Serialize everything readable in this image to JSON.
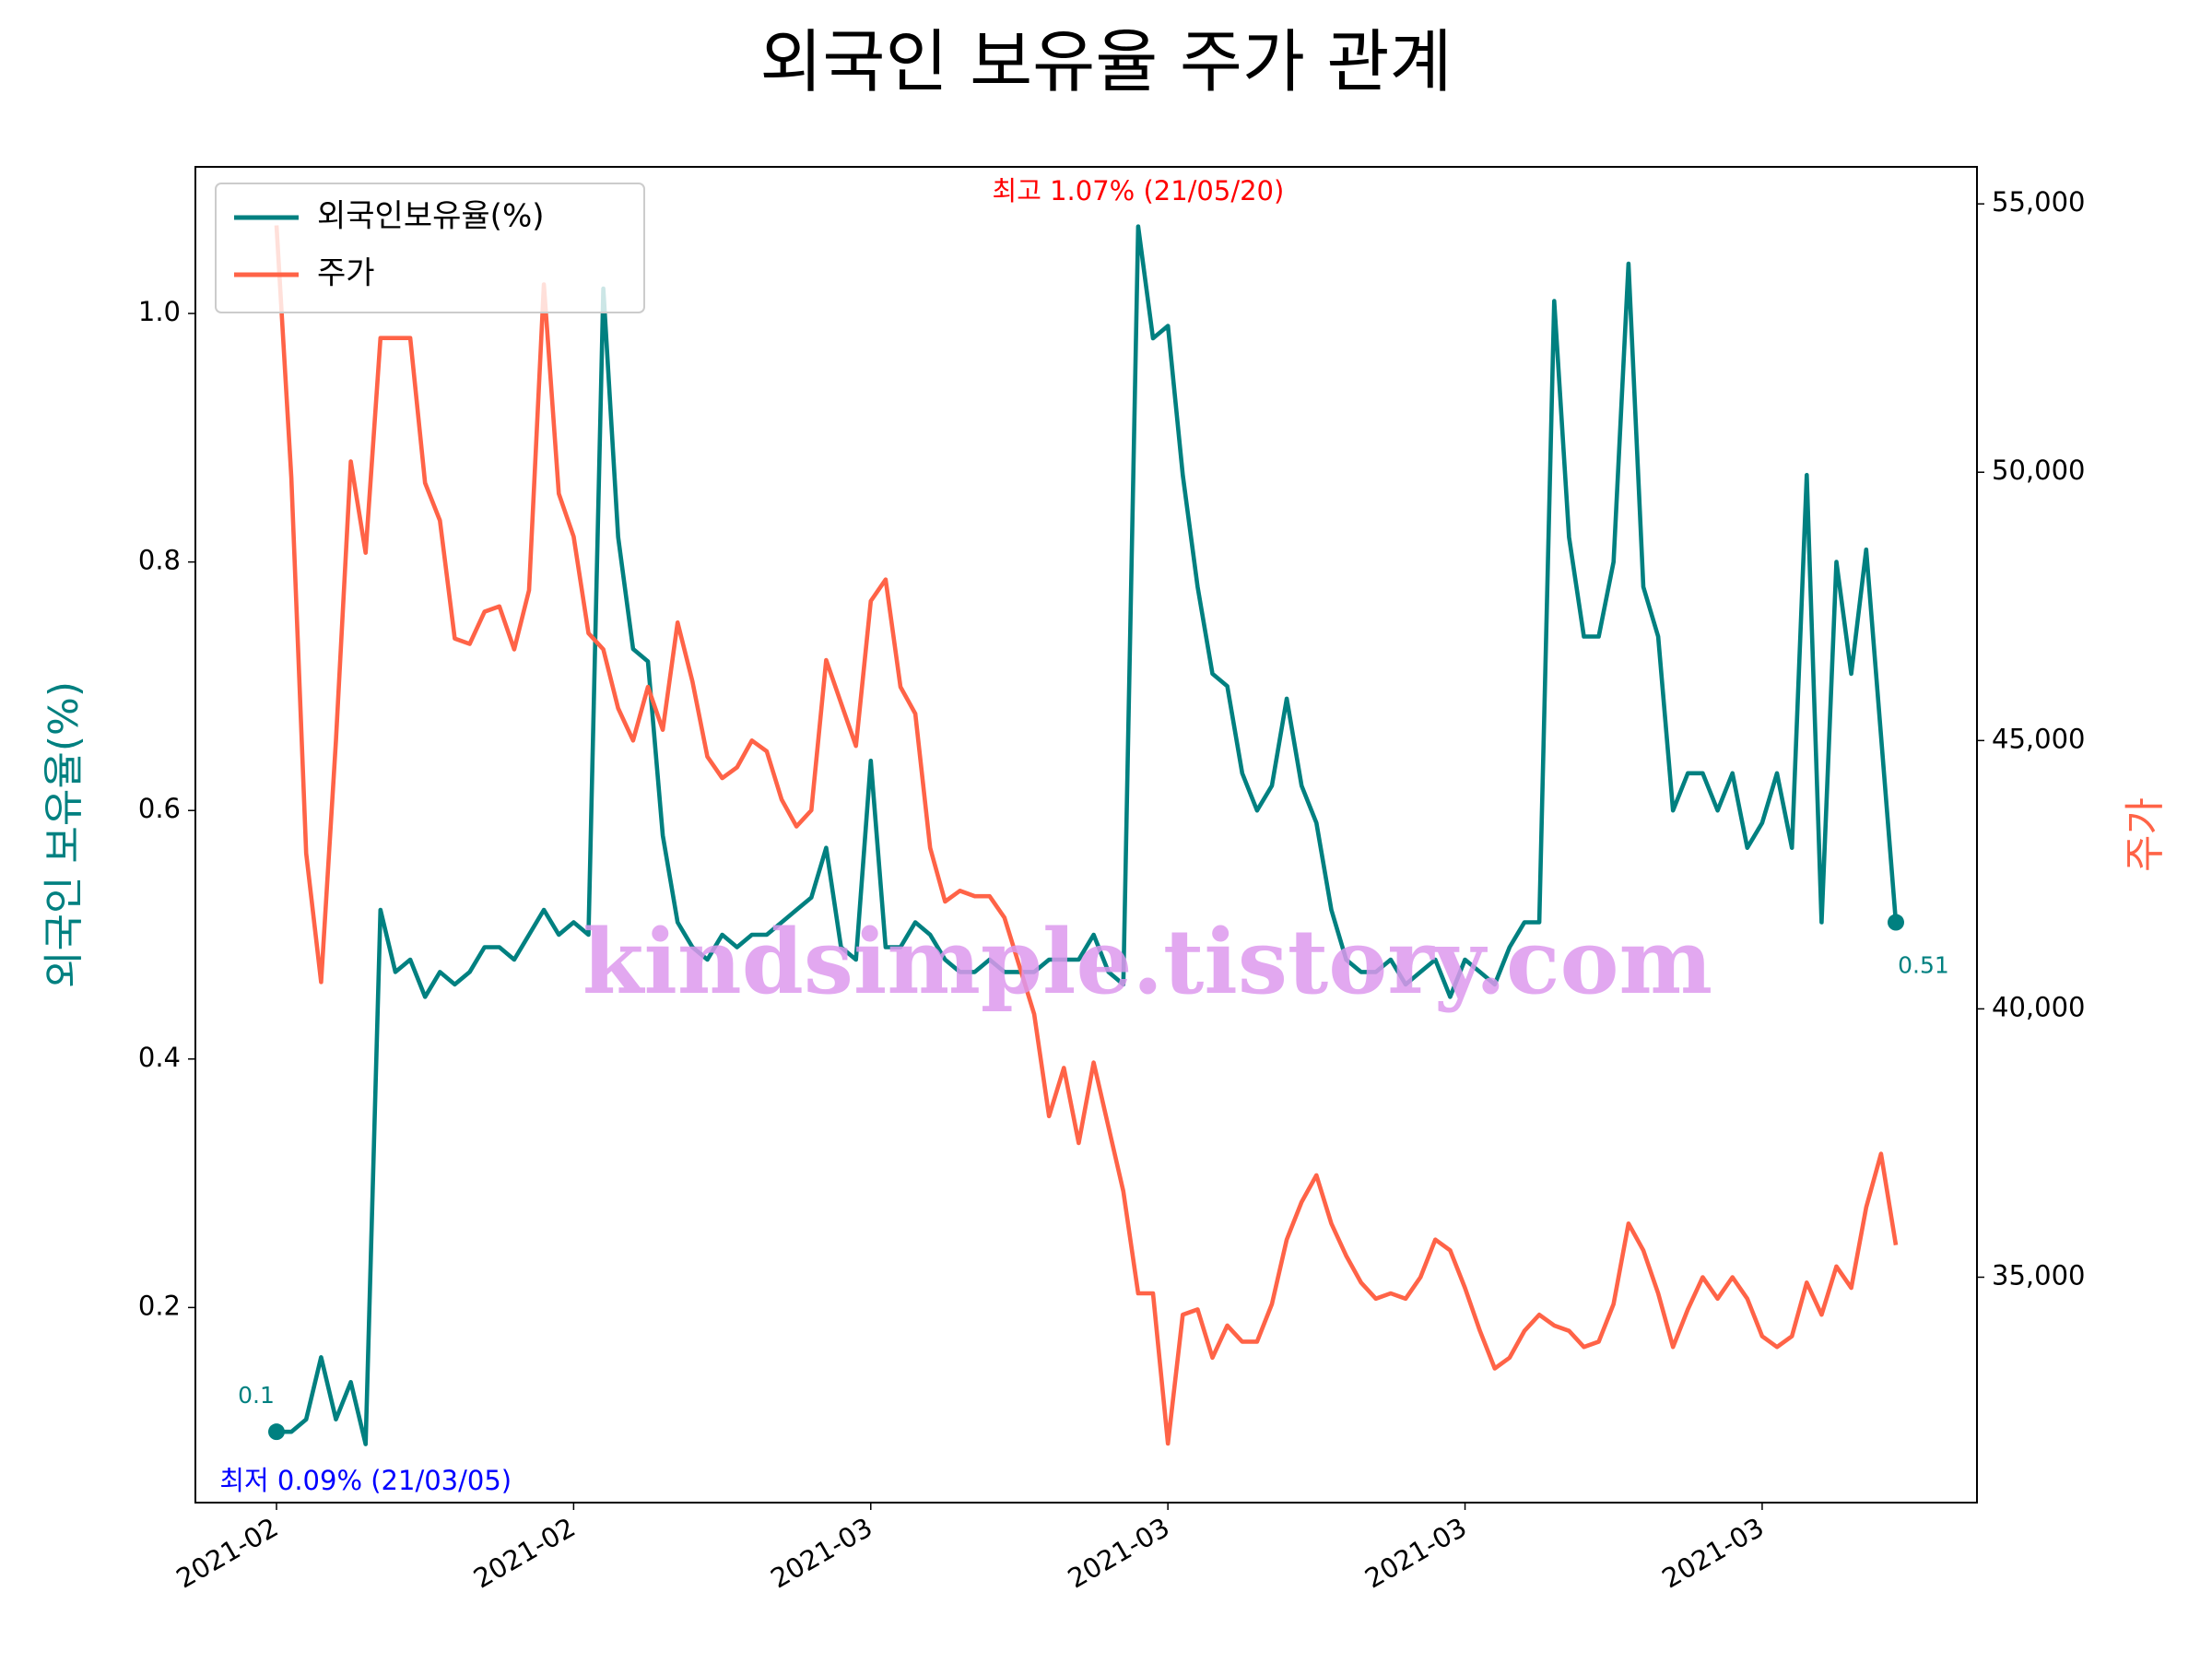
{
  "chart_data": {
    "type": "line",
    "title": "외국인 보유율 주가 관계",
    "y_label": "외국인 보유율(%)",
    "y2_label": "주가",
    "watermark": "kindsimple.tistory.com",
    "annotations": [
      {
        "text": "최고 1.07% (21/05/20)",
        "color": "#ff0000"
      },
      {
        "text": "최저 0.09% (21/03/05)",
        "color": "#0000ff"
      }
    ],
    "categories": [
      "2021-02",
      null,
      null,
      null,
      null,
      null,
      null,
      null,
      null,
      null,
      null,
      null,
      null,
      null,
      null,
      null,
      null,
      null,
      null,
      null,
      "2021-02",
      null,
      null,
      null,
      null,
      null,
      null,
      null,
      null,
      null,
      null,
      null,
      null,
      null,
      null,
      null,
      null,
      null,
      null,
      null,
      "2021-03",
      null,
      null,
      null,
      null,
      null,
      null,
      null,
      null,
      null,
      null,
      null,
      null,
      null,
      null,
      null,
      null,
      null,
      null,
      null,
      "2021-03",
      null,
      null,
      null,
      null,
      null,
      null,
      null,
      null,
      null,
      null,
      null,
      null,
      null,
      null,
      null,
      null,
      null,
      null,
      null,
      "2021-03",
      null,
      null,
      null,
      null,
      null,
      null,
      null,
      null,
      null,
      null,
      null,
      null,
      null,
      null,
      null,
      null,
      null,
      null,
      null,
      "2021-03",
      null,
      null,
      null,
      null,
      null,
      null,
      null,
      null,
      null
    ],
    "ylim": [
      0.043,
      1.118
    ],
    "yticks": [
      0.2,
      0.4,
      0.6,
      0.8,
      {
        "value": 1,
        "label": "1.0"
      }
    ],
    "y2lim": [
      30800,
      55690
    ],
    "y2ticks": [
      {
        "value": 35000,
        "label": "35,000"
      },
      {
        "value": 40000,
        "label": "40,000"
      },
      {
        "value": 45000,
        "label": "45,000"
      },
      {
        "value": 50000,
        "label": "50,000"
      },
      {
        "value": 55000,
        "label": "55,000"
      }
    ],
    "grid": false,
    "legend": "upper left",
    "series": [
      {
        "name": "외국인보유율(%)",
        "color": "#008080",
        "values": [
          0.1,
          0.1,
          0.11,
          0.16,
          0.11,
          0.14,
          0.09,
          0.52,
          0.47,
          0.48,
          0.45,
          0.47,
          0.46,
          0.47,
          0.49,
          0.49,
          0.48,
          0.5,
          0.52,
          0.5,
          0.51,
          0.5,
          1.02,
          0.82,
          0.73,
          0.72,
          0.58,
          0.51,
          0.49,
          0.48,
          0.5,
          0.49,
          0.5,
          0.5,
          0.51,
          0.52,
          0.53,
          0.57,
          0.49,
          0.48,
          0.64,
          0.49,
          0.49,
          0.51,
          0.5,
          0.48,
          0.47,
          0.47,
          0.48,
          0.47,
          0.47,
          0.47,
          0.48,
          0.48,
          0.48,
          0.5,
          0.47,
          0.46,
          1.07,
          0.98,
          0.99,
          0.87,
          0.78,
          0.71,
          0.7,
          0.63,
          0.6,
          0.62,
          0.69,
          0.62,
          0.59,
          0.52,
          0.48,
          0.47,
          0.47,
          0.48,
          0.46,
          0.47,
          0.48,
          0.45,
          0.48,
          0.47,
          0.46,
          0.49,
          0.51,
          0.51,
          1.01,
          0.82,
          0.74,
          0.74,
          0.8,
          1.04,
          0.78,
          0.74,
          0.6,
          0.63,
          0.63,
          0.6,
          0.63,
          0.57,
          0.59,
          0.63,
          0.57,
          0.87,
          0.51,
          0.8,
          0.71,
          0.81,
          0.66,
          0.51
        ],
        "value_labels": [
          "0.1",
          null,
          null,
          null,
          null,
          null,
          null,
          null,
          null,
          null,
          null,
          null,
          null,
          null,
          null,
          null,
          null,
          null,
          null,
          null,
          null,
          null,
          null,
          null,
          null,
          null,
          null,
          null,
          null,
          null,
          null,
          null,
          null,
          null,
          null,
          null,
          null,
          null,
          null,
          null,
          null,
          null,
          null,
          null,
          null,
          null,
          null,
          null,
          null,
          null,
          null,
          null,
          null,
          null,
          null,
          null,
          null,
          null,
          null,
          null,
          null,
          null,
          null,
          null,
          null,
          null,
          null,
          null,
          null,
          null,
          null,
          null,
          null,
          null,
          null,
          null,
          null,
          null,
          null,
          null,
          null,
          null,
          null,
          null,
          null,
          null,
          null,
          null,
          null,
          null,
          null,
          null,
          null,
          null,
          null,
          null,
          null,
          null,
          null,
          null,
          null,
          null,
          null,
          null,
          null,
          null,
          null,
          null,
          null,
          "0.51"
        ]
      },
      {
        "name": "주가",
        "color": "#ff6347",
        "axis": "y2",
        "values": [
          54600,
          49900,
          42900,
          40500,
          45000,
          50200,
          48500,
          52500,
          52500,
          52500,
          49800,
          49100,
          46900,
          46800,
          47400,
          47500,
          46700,
          47800,
          53500,
          49600,
          48800,
          47000,
          46700,
          45600,
          45000,
          46000,
          45200,
          47200,
          46100,
          44700,
          44300,
          44500,
          45000,
          44800,
          43900,
          43400,
          43700,
          46500,
          45700,
          44900,
          47600,
          48000,
          46000,
          45500,
          43000,
          42000,
          42200,
          42100,
          42100,
          41700,
          40800,
          39900,
          38000,
          38900,
          37500,
          39000,
          37800,
          36600,
          34700,
          34700,
          31900,
          34300,
          34400,
          33500,
          34100,
          33800,
          33800,
          34500,
          35700,
          36400,
          36900,
          36000,
          35400,
          34900,
          34600,
          34700,
          34600,
          35000,
          35700,
          35500,
          34800,
          34000,
          33300,
          33500,
          34000,
          34300,
          34100,
          34000,
          33700,
          33800,
          34500,
          36000,
          35500,
          34700,
          33700,
          34400,
          35000,
          34600,
          35000,
          34600,
          33900,
          33700,
          33900,
          34900,
          34300,
          35200,
          34800,
          36300,
          37300,
          35600
        ]
      }
    ]
  }
}
